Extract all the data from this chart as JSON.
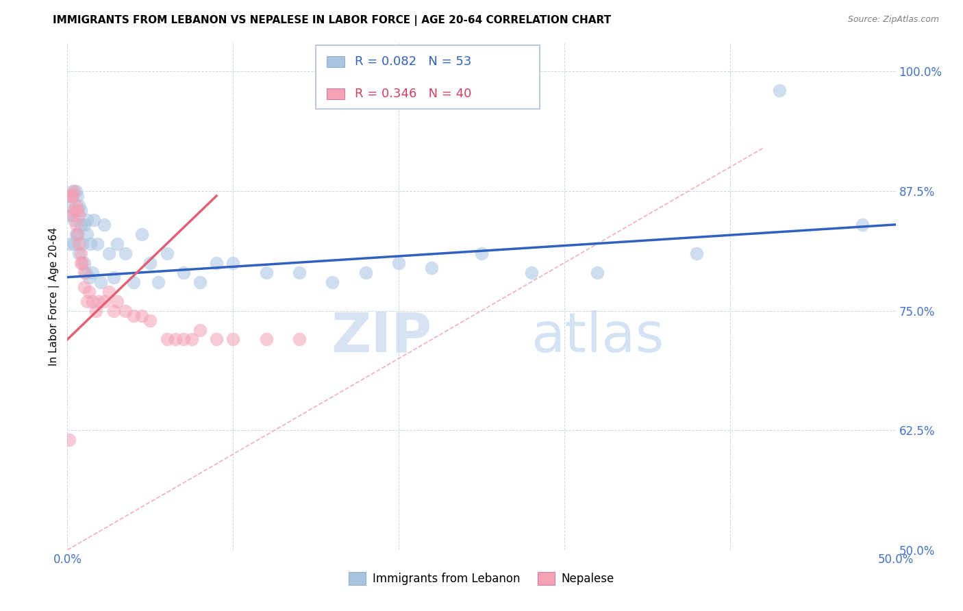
{
  "title": "IMMIGRANTS FROM LEBANON VS NEPALESE IN LABOR FORCE | AGE 20-64 CORRELATION CHART",
  "source": "Source: ZipAtlas.com",
  "ylabel": "In Labor Force | Age 20-64",
  "xlim": [
    0.0,
    0.5
  ],
  "ylim": [
    0.5,
    1.03
  ],
  "xticks": [
    0.0,
    0.1,
    0.2,
    0.3,
    0.4,
    0.5
  ],
  "xtick_labels": [
    "0.0%",
    "",
    "",
    "",
    "",
    "50.0%"
  ],
  "yticks": [
    0.5,
    0.625,
    0.75,
    0.875,
    1.0
  ],
  "ytick_labels": [
    "50.0%",
    "62.5%",
    "75.0%",
    "87.5%",
    "100.0%"
  ],
  "blue_color": "#a8c4e0",
  "pink_color": "#f4a0b5",
  "blue_line_color": "#3060c0",
  "pink_line_color": "#e06075",
  "diag_line_color": "#f0b0b8",
  "blue_scatter_x": [
    0.001,
    0.002,
    0.002,
    0.003,
    0.003,
    0.004,
    0.004,
    0.005,
    0.005,
    0.006,
    0.006,
    0.007,
    0.007,
    0.008,
    0.008,
    0.009,
    0.01,
    0.01,
    0.011,
    0.012,
    0.012,
    0.013,
    0.014,
    0.015,
    0.016,
    0.018,
    0.02,
    0.022,
    0.025,
    0.028,
    0.03,
    0.035,
    0.04,
    0.045,
    0.05,
    0.055,
    0.06,
    0.07,
    0.08,
    0.09,
    0.1,
    0.12,
    0.14,
    0.16,
    0.18,
    0.2,
    0.22,
    0.25,
    0.28,
    0.32,
    0.38,
    0.43,
    0.48
  ],
  "blue_scatter_y": [
    0.82,
    0.86,
    0.85,
    0.87,
    0.875,
    0.845,
    0.82,
    0.875,
    0.83,
    0.87,
    0.83,
    0.86,
    0.81,
    0.855,
    0.84,
    0.82,
    0.8,
    0.84,
    0.79,
    0.845,
    0.83,
    0.785,
    0.82,
    0.79,
    0.845,
    0.82,
    0.78,
    0.84,
    0.81,
    0.785,
    0.82,
    0.81,
    0.78,
    0.83,
    0.8,
    0.78,
    0.81,
    0.79,
    0.78,
    0.8,
    0.8,
    0.79,
    0.79,
    0.78,
    0.79,
    0.8,
    0.795,
    0.81,
    0.79,
    0.79,
    0.81,
    0.98,
    0.84
  ],
  "pink_scatter_x": [
    0.001,
    0.002,
    0.002,
    0.003,
    0.003,
    0.004,
    0.004,
    0.005,
    0.005,
    0.006,
    0.006,
    0.007,
    0.007,
    0.008,
    0.008,
    0.009,
    0.01,
    0.01,
    0.012,
    0.013,
    0.015,
    0.017,
    0.019,
    0.022,
    0.025,
    0.028,
    0.03,
    0.035,
    0.04,
    0.045,
    0.05,
    0.06,
    0.065,
    0.07,
    0.075,
    0.08,
    0.09,
    0.1,
    0.12,
    0.14
  ],
  "pink_scatter_y": [
    0.615,
    0.87,
    0.87,
    0.87,
    0.85,
    0.855,
    0.875,
    0.86,
    0.84,
    0.83,
    0.855,
    0.85,
    0.82,
    0.81,
    0.8,
    0.8,
    0.79,
    0.775,
    0.76,
    0.77,
    0.76,
    0.75,
    0.76,
    0.76,
    0.77,
    0.75,
    0.76,
    0.75,
    0.745,
    0.745,
    0.74,
    0.72,
    0.72,
    0.72,
    0.72,
    0.73,
    0.72,
    0.72,
    0.72,
    0.72
  ],
  "blue_line_x": [
    0.0,
    0.5
  ],
  "blue_line_y": [
    0.785,
    0.84
  ],
  "pink_line_x": [
    0.0,
    0.09
  ],
  "pink_line_y": [
    0.72,
    0.87
  ],
  "diag_line_x": [
    0.0,
    0.42
  ],
  "diag_line_y": [
    0.5,
    0.92
  ]
}
